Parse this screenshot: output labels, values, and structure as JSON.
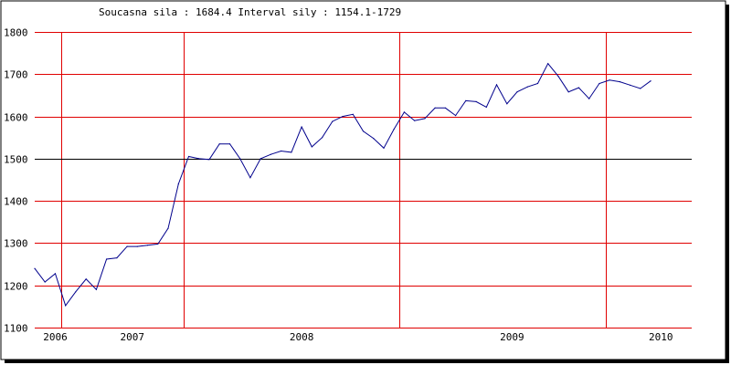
{
  "header": {
    "current_label": "Soucasna sila",
    "current_value": "1684.4",
    "interval_label": "Interval sily",
    "interval_value": "1154.1-1729"
  },
  "colors": {
    "grid": "#e00000",
    "reference": "#000000",
    "series": "#00008c",
    "frame": "#000000",
    "shadow": "#000000"
  },
  "chart_data": {
    "type": "line",
    "title": "",
    "xlabel": "",
    "ylabel": "",
    "ylim": [
      1100,
      1800
    ],
    "yticks": [
      1100,
      1200,
      1300,
      1400,
      1500,
      1600,
      1700,
      1800
    ],
    "y_reference": 1500,
    "grid": true,
    "x_range": [
      0,
      64
    ],
    "year_labels": [
      {
        "label": "2006",
        "x": 2
      },
      {
        "label": "2007",
        "x": 9.5
      },
      {
        "label": "2008",
        "x": 26
      },
      {
        "label": "2009",
        "x": 46.5
      },
      {
        "label": "2010",
        "x": 61
      }
    ],
    "year_dividers": [
      2.6,
      14.5,
      35.5,
      55.6
    ],
    "series": [
      {
        "values": [
          1240,
          1208,
          1228,
          1152,
          1185,
          1215,
          1190,
          1262,
          1265,
          1292,
          1292,
          1295,
          1298,
          1335,
          1440,
          1505,
          1500,
          1498,
          1535,
          1535,
          1500,
          1455,
          1500,
          1510,
          1518,
          1515,
          1575,
          1528,
          1550,
          1588,
          1600,
          1605,
          1565,
          1548,
          1525,
          1570,
          1610,
          1590,
          1595,
          1620,
          1620,
          1602,
          1637,
          1635,
          1622,
          1675,
          1630,
          1658,
          1670,
          1678,
          1725,
          1695,
          1658,
          1668,
          1642,
          1678,
          1686,
          1682,
          1674,
          1666,
          1684
        ]
      }
    ]
  }
}
